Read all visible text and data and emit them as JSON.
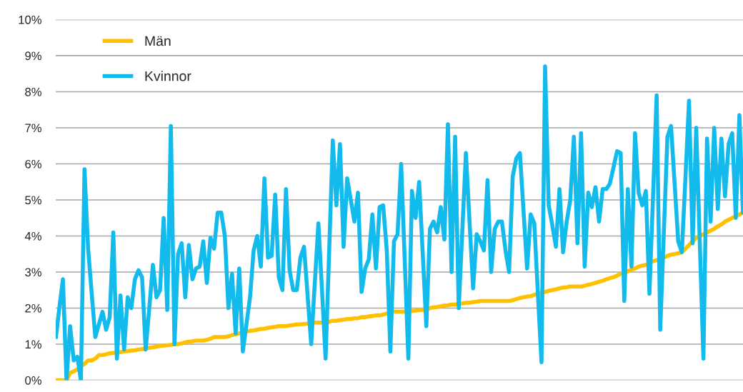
{
  "chart_data": {
    "type": "line",
    "categories": [
      null,
      null,
      null,
      null,
      null,
      null,
      null,
      null,
      null,
      null,
      null,
      null,
      null,
      null,
      null,
      null,
      null,
      null,
      null,
      null,
      null,
      null,
      null,
      null,
      null,
      null,
      null,
      null,
      null,
      null,
      null,
      null,
      null,
      null,
      null,
      null,
      null,
      null,
      null,
      null,
      null,
      null,
      null,
      null,
      null,
      null,
      null,
      null,
      null,
      null,
      null,
      null,
      null,
      null,
      null,
      null,
      null,
      null,
      null,
      null,
      null,
      null,
      null,
      null,
      null,
      null,
      null,
      null,
      null,
      null,
      null,
      null,
      null,
      null,
      null,
      null,
      null,
      null,
      null,
      null,
      null,
      null,
      null,
      null,
      null,
      null,
      null,
      null,
      null,
      null,
      null,
      null,
      null,
      null,
      null,
      null,
      null,
      null,
      null,
      null,
      null,
      null,
      null,
      null,
      null,
      null,
      null,
      null,
      null,
      null,
      null,
      null,
      null,
      null,
      null,
      null,
      null,
      null,
      null,
      null,
      null,
      null,
      null,
      null,
      null,
      null,
      null,
      null,
      null,
      null,
      null,
      null,
      null,
      null,
      null,
      null,
      null,
      null,
      null,
      null,
      null,
      null,
      null,
      null,
      null,
      null,
      null,
      null,
      null,
      null,
      null,
      null,
      null,
      null,
      null,
      null,
      null,
      null,
      null,
      null,
      null,
      null,
      null,
      null,
      null,
      null,
      null,
      null,
      null,
      null,
      null,
      null,
      null,
      null,
      null,
      null,
      null,
      null,
      null,
      null,
      null,
      null,
      null,
      null,
      null,
      null,
      null,
      null,
      null,
      null,
      null,
      null
    ],
    "series": [
      {
        "name": "Män",
        "color": "#ffc000",
        "values": [
          0,
          0,
          0,
          0,
          0.2,
          0.25,
          0.3,
          0.4,
          0.45,
          0.55,
          0.55,
          0.6,
          0.7,
          0.7,
          0.72,
          0.75,
          0.76,
          0.77,
          0.78,
          0.8,
          0.81,
          0.82,
          0.83,
          0.85,
          0.86,
          0.88,
          0.9,
          0.91,
          0.93,
          0.95,
          0.96,
          0.97,
          0.98,
          1.0,
          1.0,
          1.02,
          1.05,
          1.07,
          1.08,
          1.1,
          1.1,
          1.1,
          1.12,
          1.15,
          1.2,
          1.2,
          1.2,
          1.2,
          1.22,
          1.25,
          1.27,
          1.3,
          1.32,
          1.35,
          1.37,
          1.38,
          1.4,
          1.42,
          1.43,
          1.45,
          1.47,
          1.48,
          1.5,
          1.5,
          1.5,
          1.52,
          1.53,
          1.55,
          1.55,
          1.56,
          1.57,
          1.58,
          1.6,
          1.6,
          1.6,
          1.6,
          1.62,
          1.65,
          1.65,
          1.67,
          1.68,
          1.7,
          1.7,
          1.72,
          1.72,
          1.75,
          1.75,
          1.77,
          1.78,
          1.8,
          1.8,
          1.82,
          1.85,
          1.88,
          1.9,
          1.9,
          1.9,
          1.9,
          1.9,
          1.92,
          1.93,
          1.95,
          1.95,
          1.97,
          2.0,
          2.02,
          2.03,
          2.05,
          2.07,
          2.08,
          2.1,
          2.1,
          2.12,
          2.13,
          2.15,
          2.15,
          2.17,
          2.18,
          2.2,
          2.2,
          2.2,
          2.2,
          2.2,
          2.2,
          2.2,
          2.2,
          2.2,
          2.22,
          2.25,
          2.28,
          2.3,
          2.32,
          2.33,
          2.37,
          2.4,
          2.42,
          2.45,
          2.48,
          2.5,
          2.52,
          2.55,
          2.57,
          2.58,
          2.6,
          2.6,
          2.6,
          2.6,
          2.62,
          2.65,
          2.67,
          2.7,
          2.73,
          2.76,
          2.8,
          2.83,
          2.86,
          2.9,
          2.95,
          3.0,
          3.02,
          3.07,
          3.1,
          3.15,
          3.18,
          3.2,
          3.25,
          3.3,
          3.33,
          3.36,
          3.4,
          3.45,
          3.48,
          3.5,
          3.52,
          3.55,
          3.65,
          3.75,
          3.85,
          3.95,
          4.0,
          4.05,
          4.1,
          4.15,
          4.2,
          4.27,
          4.32,
          4.4,
          4.45,
          4.5,
          4.55,
          4.6,
          4.65
        ]
      },
      {
        "name": "Kvinnor",
        "color": "#13bbed",
        "values": [
          1.15,
          2.0,
          2.8,
          0,
          1.5,
          0.55,
          0.65,
          0,
          5.85,
          3.65,
          2.4,
          1.2,
          1.55,
          1.9,
          1.4,
          1.75,
          4.1,
          0.6,
          2.35,
          0.85,
          2.3,
          2.0,
          2.8,
          3.05,
          2.85,
          0.85,
          2.0,
          3.2,
          2.3,
          2.5,
          4.5,
          1.95,
          7.05,
          1.0,
          3.5,
          3.8,
          2.3,
          3.75,
          2.8,
          3.1,
          3.15,
          3.85,
          2.7,
          3.95,
          3.65,
          4.65,
          4.65,
          4.0,
          2.0,
          2.95,
          1.3,
          3.1,
          0.8,
          1.55,
          2.3,
          3.6,
          4.0,
          3.15,
          5.6,
          3.4,
          3.45,
          5.15,
          2.85,
          2.5,
          5.3,
          3.05,
          2.5,
          2.5,
          3.4,
          3.7,
          2.35,
          1.0,
          2.7,
          4.35,
          2.5,
          0.6,
          3.6,
          6.65,
          4.85,
          6.55,
          3.7,
          5.6,
          5.0,
          4.4,
          5.2,
          2.45,
          3.1,
          3.35,
          4.6,
          3.1,
          4.8,
          4.85,
          3.6,
          0.8,
          3.85,
          4.05,
          6.0,
          3.3,
          0.6,
          5.25,
          4.5,
          5.5,
          3.5,
          1.5,
          4.2,
          4.4,
          4.1,
          4.8,
          3.9,
          7.1,
          3.0,
          6.75,
          2.0,
          4.15,
          6.3,
          4.4,
          2.55,
          4.05,
          3.85,
          3.6,
          5.55,
          3.0,
          4.2,
          4.4,
          4.4,
          3.6,
          3.0,
          5.65,
          6.15,
          6.3,
          4.7,
          3.1,
          4.6,
          4.35,
          2.4,
          0.5,
          8.7,
          4.85,
          4.3,
          3.7,
          5.3,
          3.55,
          4.4,
          5.0,
          6.75,
          3.8,
          6.85,
          3.15,
          5.2,
          4.8,
          5.35,
          4.4,
          5.3,
          5.3,
          5.45,
          5.9,
          6.35,
          6.3,
          2.2,
          5.3,
          3.15,
          6.85,
          5.2,
          4.85,
          5.25,
          2.4,
          5.1,
          7.9,
          1.4,
          4.1,
          6.75,
          7.05,
          5.45,
          3.85,
          3.55,
          5.6,
          7.75,
          3.8,
          7.0,
          3.8,
          0.6,
          6.7,
          4.4,
          7.0,
          4.75,
          6.7,
          5.1,
          6.55,
          6.85,
          4.5,
          7.35,
          4.6
        ]
      }
    ],
    "ylim": [
      0,
      10
    ],
    "yticks": [
      {
        "value": 0,
        "label": "0%"
      },
      {
        "value": 1,
        "label": "1%"
      },
      {
        "value": 2,
        "label": "2%"
      },
      {
        "value": 3,
        "label": "3%"
      },
      {
        "value": 4,
        "label": "4%"
      },
      {
        "value": 5,
        "label": "5%"
      },
      {
        "value": 6,
        "label": "6%"
      },
      {
        "value": 7,
        "label": "7%"
      },
      {
        "value": 8,
        "label": "8%"
      },
      {
        "value": 9,
        "label": "9%"
      },
      {
        "value": 10,
        "label": "10%"
      }
    ],
    "grid": "y",
    "legend": "top left",
    "tick_labels": "y",
    "marker": "none",
    "line_style": "solid"
  }
}
